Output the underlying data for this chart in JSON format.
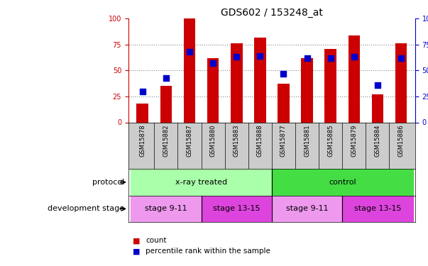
{
  "title": "GDS602 / 153248_at",
  "samples": [
    "GSM15878",
    "GSM15882",
    "GSM15887",
    "GSM15880",
    "GSM15883",
    "GSM15888",
    "GSM15877",
    "GSM15881",
    "GSM15885",
    "GSM15879",
    "GSM15884",
    "GSM15886"
  ],
  "counts": [
    18,
    35,
    100,
    62,
    76,
    82,
    37,
    62,
    71,
    84,
    27,
    76
  ],
  "percentiles": [
    30,
    43,
    68,
    57,
    63,
    64,
    47,
    62,
    62,
    63,
    36,
    62
  ],
  "ylim": [
    0,
    100
  ],
  "protocol_groups": [
    {
      "label": "x-ray treated",
      "start": 0,
      "end": 5,
      "color": "#aaffaa"
    },
    {
      "label": "control",
      "start": 6,
      "end": 11,
      "color": "#44dd44"
    }
  ],
  "stage_groups": [
    {
      "label": "stage 9-11",
      "start": 0,
      "end": 2,
      "color": "#ee99ee"
    },
    {
      "label": "stage 13-15",
      "start": 3,
      "end": 5,
      "color": "#dd44dd"
    },
    {
      "label": "stage 9-11",
      "start": 6,
      "end": 8,
      "color": "#ee99ee"
    },
    {
      "label": "stage 13-15",
      "start": 9,
      "end": 11,
      "color": "#dd44dd"
    }
  ],
  "bar_color": "#cc0000",
  "dot_color": "#0000cc",
  "left_axis_color": "#cc0000",
  "right_axis_color": "#0000cc",
  "bg_color": "#ffffff",
  "label_area_bg": "#cccccc"
}
